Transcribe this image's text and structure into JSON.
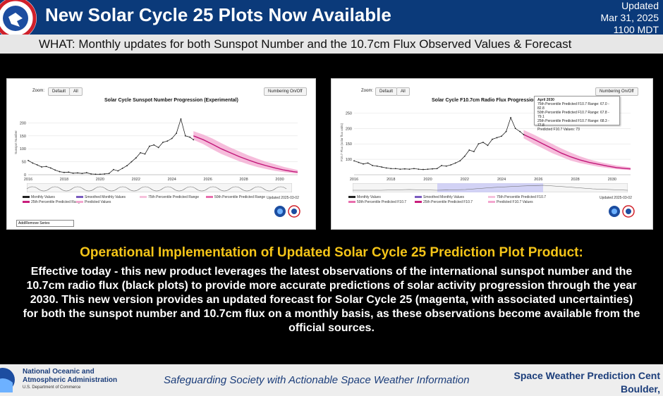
{
  "header": {
    "title": "New Solar Cycle 25 Plots Now Available",
    "updated_label": "Updated",
    "updated_date": "Mar 31, 2025",
    "updated_time": "1100 MDT"
  },
  "subheader": {
    "text": "WHAT: Monthly updates for both Sunspot Number and the 10.7cm Flux Observed Values & Forecast"
  },
  "left_panel": {
    "zoom_label": "Zoom:",
    "zoom_default": "Default",
    "zoom_all": "All",
    "toggle_button": "Numbering On/Off",
    "legend": [
      "Monthly Values",
      "Smoothed Monthly Values",
      "75th Percentile Predicted Range",
      "50th Percentile Predicted Range",
      "25th Percentile Predicted Range",
      "Predicted Values"
    ],
    "updated_note": "Updated 2025-03-02",
    "series_select": "Add/Remove Series"
  },
  "right_panel": {
    "zoom_label": "Zoom:",
    "zoom_default": "Default",
    "zoom_all": "All",
    "toggle_button": "Numbering On/Off",
    "legend": [
      "Monthly Values",
      "Smoothed Monthly Values",
      "75th Percentile Predicted F10.7",
      "50th Percentile Predicted F10.7",
      "25th Percentile Predicted F10.7",
      "Predicted F10.7 Values"
    ],
    "updated_note": "Updated 2025-03-02",
    "tooltip": {
      "title": "April 2030",
      "line1": "75th Percentile Predicted F10.7 Range: 67.0 - 82.8",
      "line2": "50th Percentile Predicted F10.7 Range: 67.8 - 79.1",
      "line3": "25th Percentile Predicted F10.7 Range: 68.3 - 77.8",
      "line4": "Predicted F10.7 Values: 73"
    }
  },
  "info": {
    "title": "Operational Implementation of Updated Solar Cycle 25 Prediction Plot Product:",
    "body": "Effective today - this new product leverages the latest observations of the international sunspot number and the 10.7cm radio flux (black plots) to provide more accurate predictions of solar activity progression through the year 2030. This new version provides an updated forecast for Solar Cycle 25 (magenta, with associated uncertainties) for both the sunspot number and 10.7cm flux on a monthly basis, as these observations become available from the official sources."
  },
  "footer": {
    "noaa_line1": "National Oceanic and",
    "noaa_line2": "Atmospheric Administration",
    "dept": "U.S. Department of Commerce",
    "tagline": "Safeguarding Society with Actionable Space Weather Information",
    "swpc_line1": "Space Weather Prediction Cent",
    "swpc_line2": "Boulder,"
  },
  "chart_data": [
    {
      "type": "line",
      "title": "Solar Cycle Sunspot Number Progression (Experimental)",
      "ylabel": "Sunspot Number",
      "xlabel": "",
      "xlim": [
        2016,
        2031
      ],
      "ylim": [
        0,
        250
      ],
      "yticks": [
        0,
        50,
        100,
        150,
        200
      ],
      "xticks": [
        2016,
        2018,
        2020,
        2022,
        2024,
        2026,
        2028,
        2030
      ],
      "observed": {
        "x": [
          2016.0,
          2016.25,
          2016.5,
          2016.75,
          2017.0,
          2017.25,
          2017.5,
          2017.75,
          2018.0,
          2018.25,
          2018.5,
          2018.75,
          2019.0,
          2019.25,
          2019.5,
          2019.75,
          2020.0,
          2020.25,
          2020.5,
          2020.75,
          2021.0,
          2021.25,
          2021.5,
          2021.75,
          2022.0,
          2022.25,
          2022.5,
          2022.75,
          2023.0,
          2023.25,
          2023.5,
          2023.75,
          2024.0,
          2024.25,
          2024.5,
          2024.75,
          2025.0,
          2025.2
        ],
        "y": [
          55,
          45,
          38,
          30,
          32,
          26,
          18,
          12,
          9,
          10,
          6,
          7,
          5,
          8,
          3,
          2,
          2,
          3,
          5,
          20,
          15,
          25,
          35,
          50,
          65,
          85,
          80,
          110,
          115,
          105,
          125,
          130,
          140,
          160,
          215,
          150,
          145,
          135
        ]
      },
      "forecast": {
        "x": [
          2025.2,
          2025.75,
          2026.25,
          2026.75,
          2027.25,
          2027.75,
          2028.25,
          2028.75,
          2029.25,
          2029.75,
          2030.25,
          2030.75,
          2031.0
        ],
        "y": [
          150,
          135,
          118,
          100,
          85,
          70,
          57,
          45,
          35,
          26,
          18,
          12,
          10
        ],
        "upper75": [
          168,
          155,
          140,
          122,
          105,
          90,
          75,
          62,
          50,
          40,
          30,
          22,
          18
        ],
        "lower25": [
          135,
          118,
          98,
          80,
          66,
          52,
          40,
          30,
          22,
          15,
          10,
          6,
          4
        ]
      }
    },
    {
      "type": "line",
      "title": "Solar Cycle F10.7cm Radio Flux Progression (Experimental)",
      "ylabel": "F10.7 Flux (solar flux units)",
      "xlabel": "",
      "xlim": [
        2016,
        2031
      ],
      "ylim": [
        50,
        260
      ],
      "yticks": [
        100,
        150,
        200,
        250
      ],
      "xticks": [
        2016,
        2018,
        2020,
        2022,
        2024,
        2026,
        2028,
        2030
      ],
      "observed": {
        "x": [
          2016.0,
          2016.25,
          2016.5,
          2016.75,
          2017.0,
          2017.25,
          2017.5,
          2017.75,
          2018.0,
          2018.25,
          2018.5,
          2018.75,
          2019.0,
          2019.25,
          2019.5,
          2019.75,
          2020.0,
          2020.25,
          2020.5,
          2020.75,
          2021.0,
          2021.25,
          2021.5,
          2021.75,
          2022.0,
          2022.25,
          2022.5,
          2022.75,
          2023.0,
          2023.25,
          2023.5,
          2023.75,
          2024.0,
          2024.25,
          2024.5,
          2024.75,
          2025.0,
          2025.2
        ],
        "y": [
          95,
          90,
          85,
          88,
          80,
          78,
          75,
          72,
          70,
          70,
          68,
          69,
          68,
          70,
          68,
          67,
          68,
          69,
          70,
          80,
          78,
          82,
          88,
          95,
          110,
          130,
          125,
          150,
          155,
          145,
          165,
          170,
          175,
          190,
          235,
          200,
          190,
          180
        ]
      },
      "forecast": {
        "x": [
          2025.2,
          2025.75,
          2026.25,
          2026.75,
          2027.25,
          2027.75,
          2028.25,
          2028.75,
          2029.25,
          2029.75,
          2030.25,
          2030.75,
          2031.0
        ],
        "y": [
          180,
          165,
          150,
          135,
          120,
          108,
          98,
          90,
          84,
          78,
          73,
          70,
          69
        ],
        "upper75": [
          195,
          180,
          165,
          150,
          135,
          122,
          110,
          100,
          92,
          86,
          80,
          76,
          74
        ],
        "lower25": [
          168,
          150,
          135,
          120,
          108,
          96,
          88,
          82,
          76,
          72,
          68,
          66,
          65
        ]
      }
    }
  ],
  "colors": {
    "header_bg": "#0b3a7a",
    "info_title": "#f5c518",
    "forecast": "#c2187a",
    "uncertainty": "#f3a6cf",
    "observed": "#222222"
  }
}
